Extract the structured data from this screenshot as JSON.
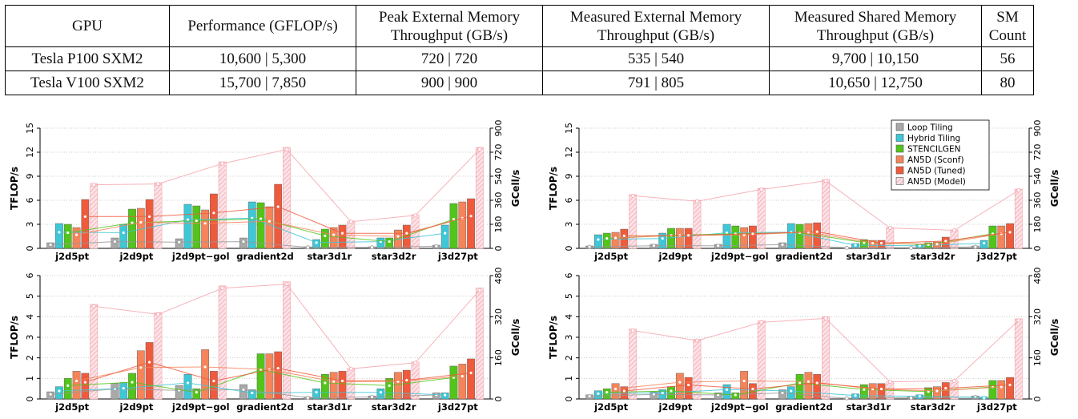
{
  "table": {
    "headers": [
      [
        "GPU"
      ],
      [
        "Performance (GFLOP/s)"
      ],
      [
        "Peak External Memory",
        "Throughput (GB/s)"
      ],
      [
        "Measured External Memory",
        "Throughput (GB/s)"
      ],
      [
        "Measured Shared Memory",
        "Throughput (GB/s)"
      ],
      [
        "SM",
        "Count"
      ]
    ],
    "rows": [
      [
        "Tesla P100 SXM2",
        "10,600 | 5,300",
        "720 | 720",
        "535 | 540",
        "9,700 | 10,150",
        "56"
      ],
      [
        "Tesla V100 SXM2",
        "15,700 | 7,850",
        "900 | 900",
        "791 | 805",
        "10,650 | 12,750",
        "80"
      ]
    ]
  },
  "colors": {
    "loop": "#a9a9a9",
    "hybrid": "#3ec7d6",
    "stencilgen": "#52c41a",
    "sconf": "#f5845a",
    "tuned": "#ef5a3c",
    "model": "#f2c4cc",
    "model_line": "#f4a6ae"
  },
  "chart_data": [
    {
      "type": "bar",
      "ylabel": "TFLOP/s",
      "y2label": "GCell/s",
      "ylim": [
        0,
        15
      ],
      "yticks": [
        "0",
        "3",
        "6",
        "9",
        "12",
        "15"
      ],
      "y2ticks": [
        "0",
        "180",
        "360",
        "540",
        "720",
        "900"
      ],
      "categories": [
        "j2d5pt",
        "j2d9pt",
        "j2d9pt−gol",
        "gradient2d",
        "star3d1r",
        "star3d2r",
        "j3d27pt"
      ],
      "legend": [],
      "series": [
        {
          "key": "loop",
          "values": [
            0.7,
            1.3,
            1.2,
            1.3,
            0.2,
            0.2,
            0.4
          ]
        },
        {
          "key": "hybrid",
          "values": [
            3.1,
            3.0,
            5.5,
            5.8,
            1.1,
            1.3,
            2.9
          ]
        },
        {
          "key": "stencilgen",
          "values": [
            3.0,
            4.9,
            5.3,
            5.7,
            2.4,
            1.3,
            5.6
          ]
        },
        {
          "key": "sconf",
          "values": [
            2.6,
            5.0,
            4.8,
            5.2,
            2.6,
            2.3,
            5.8
          ]
        },
        {
          "key": "tuned",
          "values": [
            6.1,
            6.1,
            6.8,
            8.0,
            2.9,
            2.9,
            6.2
          ]
        },
        {
          "key": "model",
          "values": [
            8.1,
            8.2,
            10.8,
            12.6,
            3.4,
            4.2,
            12.6
          ]
        }
      ]
    },
    {
      "type": "bar",
      "ylabel": "TFLOP/s",
      "y2label": "GCell/s",
      "ylim": [
        0,
        15
      ],
      "yticks": [
        "0",
        "3",
        "6",
        "9",
        "12",
        "15"
      ],
      "y2ticks": [
        "0",
        "180",
        "360",
        "540",
        "720",
        "900"
      ],
      "categories": [
        "j2d5pt",
        "j2d9pt",
        "j2d9pt−gol",
        "gradient2d",
        "star3d1r",
        "star3d2r",
        "j3d27pt"
      ],
      "legend": [
        "Loop Tiling",
        "Hybrid Tiling",
        "STENCILGEN",
        "AN5D (Sconf)",
        "AN5D (Tuned)",
        "AN5D (Model)"
      ],
      "series": [
        {
          "key": "loop",
          "values": [
            0.3,
            0.5,
            0.5,
            0.7,
            0.1,
            0.1,
            0.3
          ]
        },
        {
          "key": "hybrid",
          "values": [
            1.7,
            1.9,
            3.0,
            3.1,
            0.6,
            0.5,
            1.0
          ]
        },
        {
          "key": "stencilgen",
          "values": [
            1.9,
            2.5,
            2.8,
            3.0,
            1.1,
            0.7,
            2.8
          ]
        },
        {
          "key": "sconf",
          "values": [
            2.0,
            2.5,
            2.6,
            3.1,
            1.0,
            0.8,
            2.8
          ]
        },
        {
          "key": "tuned",
          "values": [
            2.4,
            2.5,
            2.8,
            3.2,
            1.0,
            1.4,
            3.1
          ]
        },
        {
          "key": "model",
          "values": [
            6.7,
            6.0,
            7.5,
            8.6,
            2.6,
            2.3,
            7.4
          ]
        }
      ]
    },
    {
      "type": "bar",
      "ylabel": "TFLOP/s",
      "y2label": "GCell/s",
      "ylim": [
        0,
        6
      ],
      "yticks": [
        "0",
        "1",
        "2",
        "3",
        "4",
        "5",
        "6"
      ],
      "y2ticks": [
        "0",
        "160",
        "320",
        "480"
      ],
      "categories": [
        "j2d5pt",
        "j2d9pt",
        "j2d9pt−gol",
        "gradient2d",
        "star3d1r",
        "star3d2r",
        "j3d27pt"
      ],
      "legend": [],
      "series": [
        {
          "key": "loop",
          "values": [
            0.35,
            0.75,
            0.65,
            0.7,
            0.1,
            0.15,
            0.3
          ]
        },
        {
          "key": "hybrid",
          "values": [
            0.6,
            0.8,
            1.2,
            0.45,
            0.5,
            0.5,
            0.3
          ]
        },
        {
          "key": "stencilgen",
          "values": [
            1.0,
            1.25,
            0.5,
            2.2,
            1.2,
            1.0,
            1.6
          ]
        },
        {
          "key": "sconf",
          "values": [
            1.35,
            2.35,
            2.4,
            2.2,
            1.3,
            1.3,
            1.7
          ]
        },
        {
          "key": "tuned",
          "values": [
            1.25,
            2.75,
            1.35,
            2.3,
            1.35,
            1.4,
            1.95
          ]
        },
        {
          "key": "model",
          "values": [
            4.6,
            4.2,
            5.5,
            5.7,
            1.5,
            1.8,
            5.4
          ]
        }
      ]
    },
    {
      "type": "bar",
      "ylabel": "TFLOP/s",
      "y2label": "GCell/s",
      "ylim": [
        0,
        6
      ],
      "yticks": [
        "0",
        "1",
        "2",
        "3",
        "4",
        "5",
        "6"
      ],
      "y2ticks": [
        "0",
        "160",
        "320",
        "480"
      ],
      "categories": [
        "j2d5pt",
        "j2d9pt",
        "j2d9pt−gol",
        "gradient2d",
        "star3d1r",
        "star3d2r",
        "j3d27pt"
      ],
      "legend": [],
      "series": [
        {
          "key": "loop",
          "values": [
            0.2,
            0.35,
            0.3,
            0.45,
            0.05,
            0.1,
            0.15
          ]
        },
        {
          "key": "hybrid",
          "values": [
            0.4,
            0.45,
            0.7,
            0.6,
            0.25,
            0.2,
            0.1
          ]
        },
        {
          "key": "stencilgen",
          "values": [
            0.5,
            0.6,
            0.3,
            1.2,
            0.7,
            0.55,
            0.9
          ]
        },
        {
          "key": "sconf",
          "values": [
            0.75,
            1.25,
            1.35,
            1.3,
            0.75,
            0.6,
            0.9
          ]
        },
        {
          "key": "tuned",
          "values": [
            0.6,
            1.05,
            0.75,
            1.2,
            0.75,
            0.8,
            1.05
          ]
        },
        {
          "key": "model",
          "values": [
            3.4,
            2.9,
            3.8,
            4.0,
            0.85,
            0.9,
            3.9
          ]
        }
      ]
    }
  ]
}
